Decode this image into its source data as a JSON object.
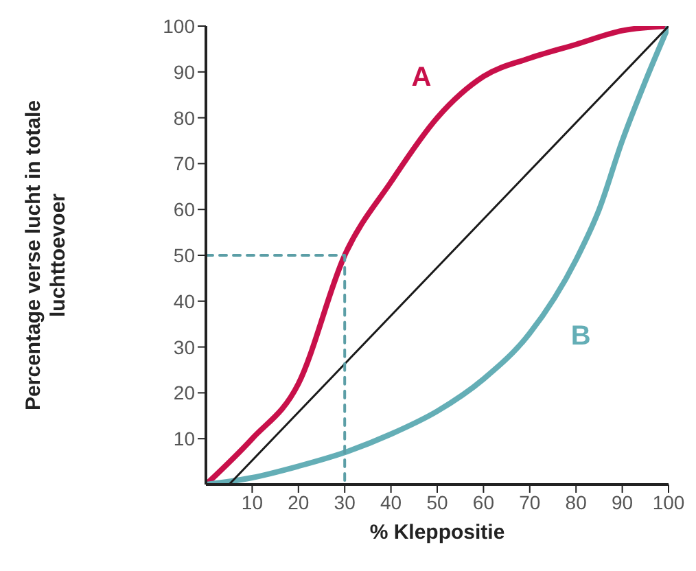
{
  "chart_data": {
    "type": "line",
    "xlabel": "% Kleppositie",
    "ylabel": "Percentage verse lucht in totale luchttoevoer",
    "xlim": [
      0,
      100
    ],
    "ylim": [
      0,
      100
    ],
    "xticks": [
      10,
      20,
      30,
      40,
      50,
      60,
      70,
      80,
      90,
      100
    ],
    "yticks": [
      10,
      20,
      30,
      40,
      50,
      60,
      70,
      80,
      90,
      100
    ],
    "marker": "none",
    "series": [
      {
        "name": "A",
        "color": "#c8104a",
        "x": [
          0,
          10,
          20,
          30,
          40,
          50,
          60,
          70,
          80,
          90,
          100
        ],
        "values": [
          0,
          10,
          22,
          50,
          66,
          80,
          89,
          93,
          96,
          99,
          100
        ]
      },
      {
        "name": "B",
        "color": "#64aeb6",
        "x": [
          0,
          10,
          20,
          30,
          40,
          50,
          60,
          70,
          80,
          85,
          90,
          95,
          100
        ],
        "values": [
          0,
          1.5,
          4,
          7,
          11,
          16,
          23,
          33,
          49,
          60,
          75,
          88,
          100
        ]
      },
      {
        "color": "#1a1a1a",
        "x": [
          5,
          100
        ],
        "values": [
          0,
          100
        ]
      },
      {
        "color": "#5b9ea6",
        "line_style": "dashed",
        "x": [
          0,
          30,
          30
        ],
        "values": [
          50,
          50,
          0
        ]
      }
    ]
  }
}
